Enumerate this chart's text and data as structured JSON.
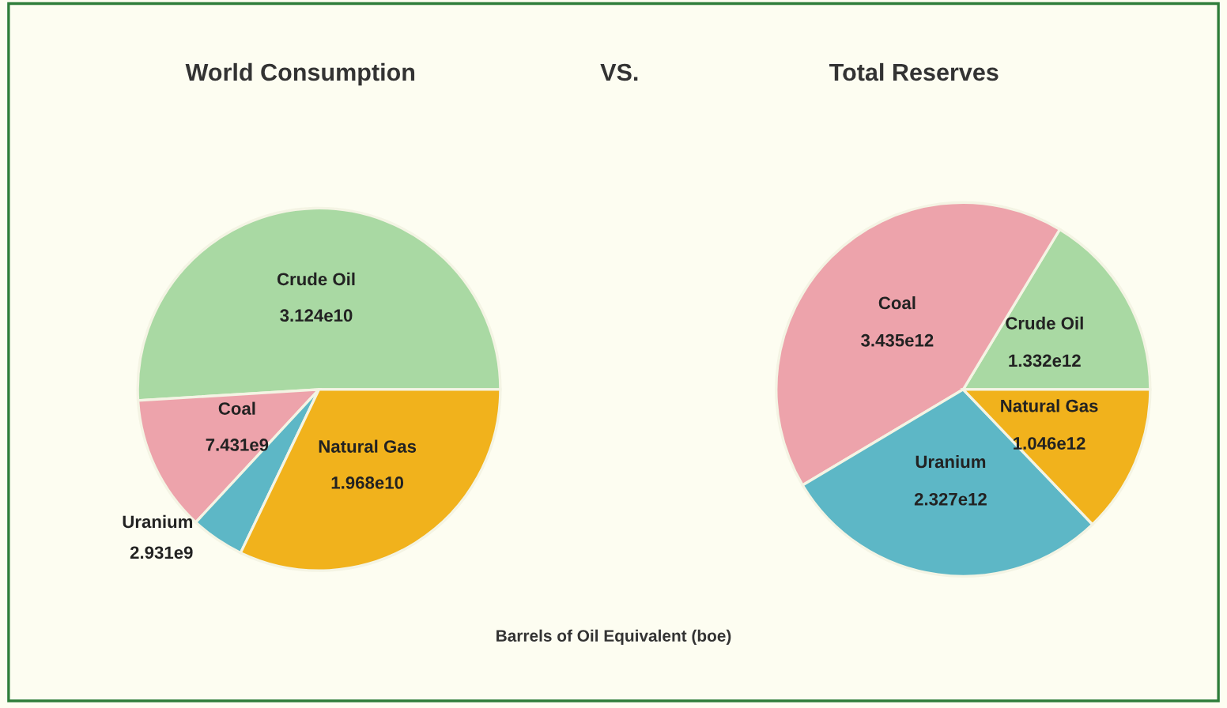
{
  "chart_data": [
    {
      "type": "pie",
      "title": "World Consumption",
      "categories": [
        "Crude Oil",
        "Coal",
        "Uranium",
        "Natural Gas"
      ],
      "values": [
        31240000000.0,
        7431000000.0,
        2931000000.0,
        19680000000.0
      ],
      "value_labels": [
        "3.124e10",
        "7.431e9",
        "2.931e9",
        "1.968e10"
      ],
      "colors": [
        "#a9d9a3",
        "#eda3ab",
        "#5db7c6",
        "#f1b21c"
      ],
      "annotations": [
        "VS.",
        "Barrels of Oil Equivalent (boe)"
      ]
    },
    {
      "type": "pie",
      "title": "Total Reserves",
      "categories": [
        "Crude Oil",
        "Coal",
        "Uranium",
        "Natural Gas"
      ],
      "values": [
        1332000000000.0,
        3435000000000.0,
        2327000000000.0,
        1046000000000.0
      ],
      "value_labels": [
        "1.332e12",
        "3.435e12",
        "2.327e12",
        "1.046e12"
      ],
      "colors": [
        "#a9d9a3",
        "#eda3ab",
        "#5db7c6",
        "#f1b21c"
      ]
    }
  ]
}
